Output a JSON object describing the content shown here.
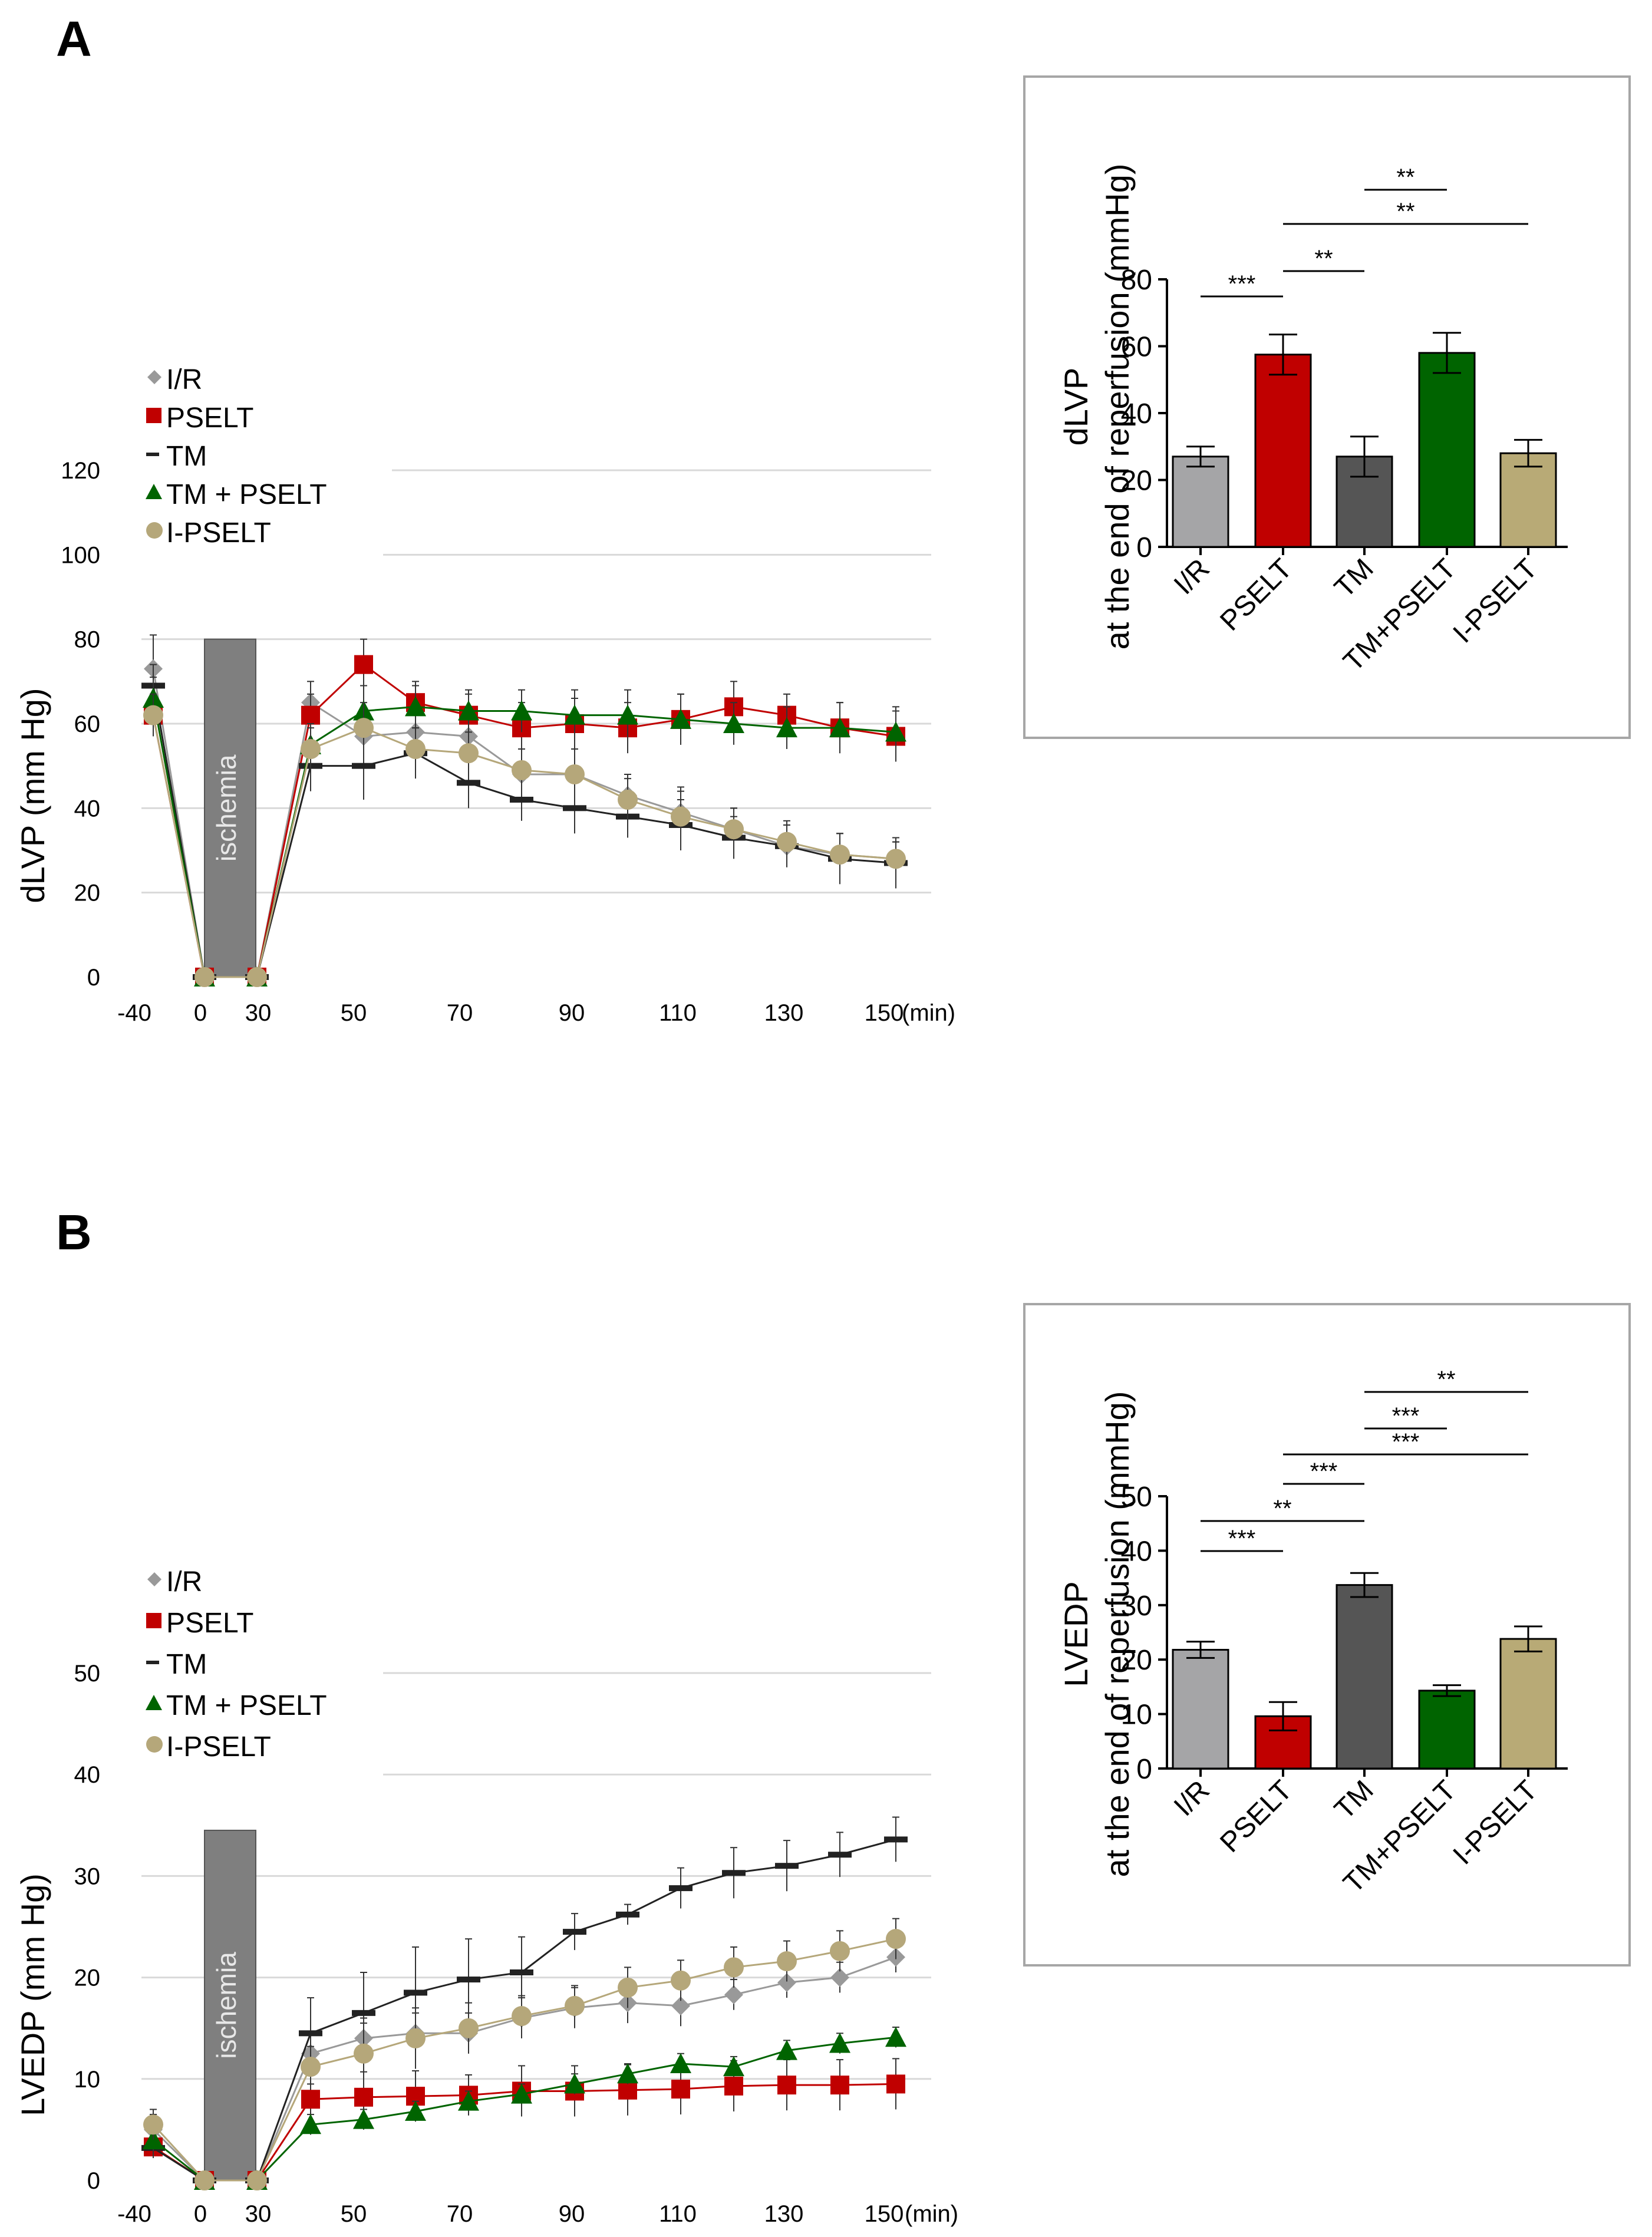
{
  "panels": [
    {
      "id": "A",
      "letter": "A",
      "line": {
        "ylabel": "dLVP (mm Hg)",
        "ylim": [
          0,
          120
        ],
        "yticks": [
          0,
          20,
          40,
          60,
          80,
          100,
          120
        ],
        "xtick_labels": [
          "-40",
          "0",
          "30",
          "50",
          "70",
          "90",
          "110",
          "130",
          "150"
        ],
        "x_unit": "(min)",
        "ischemia_label": "ischemia",
        "ischemia_top": 80,
        "legend": [
          "I/R",
          "PSELT",
          "TM",
          "TM +  PSELT",
          "I-PSELT"
        ]
      },
      "bar": {
        "ylabel_line1": "dLVP",
        "ylabel_line2": "at the end of reperfusion (mmHg)",
        "ylim": [
          0,
          80
        ],
        "yticks": [
          0,
          20,
          40,
          60,
          80
        ],
        "categories": [
          "I/R",
          "PSELT",
          "TM",
          "TM+PSELT",
          "I-PSELT"
        ],
        "significance": [
          {
            "from": 0,
            "to": 1,
            "label": "***"
          },
          {
            "from": 1,
            "to": 2,
            "label": "**"
          },
          {
            "from": 1,
            "to": 4,
            "label": "**"
          },
          {
            "from": 2,
            "to": 3,
            "label": "**"
          }
        ]
      }
    },
    {
      "id": "B",
      "letter": "B",
      "line": {
        "ylabel": "LVEDP (mm Hg)",
        "ylim": [
          0,
          50
        ],
        "yticks": [
          0,
          10,
          20,
          30,
          40,
          50
        ],
        "xtick_labels": [
          "-40",
          "0",
          "30",
          "50",
          "70",
          "90",
          "110",
          "130",
          "150"
        ],
        "x_unit": "(min)",
        "ischemia_label": "ischemia",
        "ischemia_top": 34.5,
        "legend": [
          "I/R",
          "PSELT",
          "TM",
          "TM +  PSELT",
          "I-PSELT"
        ]
      },
      "bar": {
        "ylabel_line1": "LVEDP",
        "ylabel_line2": "at the end of reperfusion (mmHg)",
        "ylim": [
          0,
          50
        ],
        "yticks": [
          0,
          10,
          20,
          30,
          40,
          50
        ],
        "categories": [
          "I/R",
          "PSELT",
          "TM",
          "TM+PSELT",
          "I-PSELT"
        ],
        "significance": [
          {
            "from": 0,
            "to": 1,
            "label": "***"
          },
          {
            "from": 0,
            "to": 2,
            "label": "**"
          },
          {
            "from": 1,
            "to": 2,
            "label": "***"
          },
          {
            "from": 1,
            "to": 4,
            "label": "***"
          },
          {
            "from": 2,
            "to": 3,
            "label": "***"
          },
          {
            "from": 2,
            "to": 4,
            "label": "**"
          }
        ]
      }
    }
  ],
  "chart_data": [
    {
      "type": "line",
      "panel": "A",
      "title": "",
      "xlabel": "(min)",
      "ylabel": "dLVP (mm Hg)",
      "ylim": [
        0,
        120
      ],
      "x": [
        -40,
        0,
        30,
        40,
        50,
        60,
        70,
        80,
        90,
        100,
        110,
        120,
        130,
        140,
        150
      ],
      "series": [
        {
          "name": "I/R",
          "color": "#999999",
          "marker": "diamond",
          "values": [
            73,
            0,
            0,
            65,
            57,
            58,
            57,
            48,
            48,
            43,
            39,
            35,
            31,
            29,
            28
          ],
          "errors": [
            8,
            0,
            0,
            5,
            6,
            5,
            5,
            6,
            6,
            5,
            6,
            5,
            5,
            5,
            4
          ]
        },
        {
          "name": "PSELT",
          "color": "#c00000",
          "marker": "square",
          "values": [
            62,
            0,
            0,
            62,
            74,
            65,
            62,
            59,
            60,
            59,
            61,
            64,
            62,
            59,
            57
          ],
          "errors": [
            4,
            0,
            0,
            5,
            6,
            5,
            5,
            6,
            6,
            6,
            6,
            6,
            5,
            6,
            6
          ]
        },
        {
          "name": "TM",
          "color": "#222222",
          "marker": "dash",
          "values": [
            69,
            0,
            0,
            50,
            50,
            53,
            46,
            42,
            40,
            38,
            36,
            33,
            31,
            28,
            27
          ],
          "errors": [
            5,
            0,
            0,
            6,
            8,
            6,
            6,
            5,
            6,
            5,
            6,
            5,
            5,
            6,
            6
          ]
        },
        {
          "name": "TM +  PSELT",
          "color": "#006400",
          "marker": "triangle",
          "values": [
            66,
            0,
            0,
            55,
            63,
            64,
            63,
            63,
            62,
            62,
            61,
            60,
            59,
            59,
            58
          ],
          "errors": [
            5,
            0,
            0,
            5,
            6,
            5,
            5,
            5,
            6,
            6,
            6,
            5,
            5,
            6,
            6
          ]
        },
        {
          "name": "I-PSELT",
          "color": "#b5a77a",
          "marker": "circle",
          "values": [
            62,
            0,
            0,
            54,
            59,
            54,
            53,
            49,
            48,
            42,
            38,
            35,
            32,
            29,
            28
          ],
          "errors": [
            5,
            0,
            0,
            5,
            6,
            5,
            5,
            5,
            6,
            5,
            6,
            5,
            5,
            5,
            4
          ]
        }
      ],
      "annotations": [
        "ischemia"
      ]
    },
    {
      "type": "bar",
      "panel": "A",
      "title": "",
      "xlabel": "",
      "ylabel": "dLVP at the end of reperfusion (mmHg)",
      "ylim": [
        0,
        80
      ],
      "categories": [
        "I/R",
        "PSELT",
        "TM",
        "TM+PSELT",
        "I-PSELT"
      ],
      "values": [
        27,
        57.5,
        27,
        58,
        28
      ],
      "errors": [
        3,
        6,
        6,
        6,
        4
      ],
      "colors": [
        "#a5a5a7",
        "#c00000",
        "#555555",
        "#006400",
        "#b8aa76"
      ]
    },
    {
      "type": "line",
      "panel": "B",
      "title": "",
      "xlabel": "(min)",
      "ylabel": "LVEDP (mm Hg)",
      "ylim": [
        0,
        50
      ],
      "x": [
        -40,
        0,
        30,
        40,
        50,
        60,
        70,
        80,
        90,
        100,
        110,
        120,
        130,
        140,
        150
      ],
      "series": [
        {
          "name": "I/R",
          "color": "#999999",
          "marker": "diamond",
          "values": [
            5,
            0,
            0,
            12.5,
            14,
            14.5,
            14.5,
            16,
            17,
            17.5,
            17.2,
            18.3,
            19.5,
            20,
            22
          ],
          "errors": [
            1.5,
            0,
            0,
            2,
            2,
            2,
            2,
            2,
            2,
            2,
            2,
            1.5,
            1.5,
            1.5,
            1.5
          ]
        },
        {
          "name": "PSELT",
          "color": "#c00000",
          "marker": "square",
          "values": [
            3.3,
            0,
            0,
            8,
            8.2,
            8.3,
            8.4,
            8.8,
            8.8,
            8.9,
            9,
            9.3,
            9.4,
            9.4,
            9.5
          ],
          "errors": [
            1,
            0,
            0,
            1.5,
            2.5,
            2.5,
            2,
            2.5,
            2.5,
            2.5,
            2.5,
            2.5,
            2.5,
            2.5,
            2.5
          ]
        },
        {
          "name": "TM",
          "color": "#222222",
          "marker": "dash",
          "values": [
            3.2,
            0,
            0,
            14.5,
            16.5,
            18.5,
            19.8,
            20.5,
            24.5,
            26.2,
            28.8,
            30.3,
            31,
            32.1,
            33.6
          ],
          "errors": [
            1,
            0,
            0,
            3.5,
            4,
            4.5,
            4,
            3.5,
            1.8,
            1,
            2,
            2.5,
            2.5,
            2.2,
            2.2
          ]
        },
        {
          "name": "TM +  PSELT",
          "color": "#006400",
          "marker": "triangle",
          "values": [
            4,
            0,
            0,
            5.5,
            6,
            6.8,
            7.8,
            8.5,
            9.5,
            10.5,
            11.5,
            11.2,
            12.8,
            13.5,
            14.1
          ],
          "errors": [
            1.5,
            0,
            0,
            1,
            1,
            1,
            1,
            1,
            1,
            1,
            1,
            1,
            1,
            1,
            1
          ]
        },
        {
          "name": "I-PSELT",
          "color": "#b5a77a",
          "marker": "circle",
          "values": [
            5.5,
            0,
            0,
            11.2,
            12.5,
            14,
            15,
            16.2,
            17.2,
            19,
            19.7,
            21,
            21.6,
            22.6,
            23.8
          ],
          "errors": [
            1.5,
            0,
            0,
            2,
            3,
            3,
            2.5,
            2,
            2,
            2,
            2,
            2,
            2,
            2,
            2
          ]
        }
      ],
      "annotations": [
        "ischemia"
      ]
    },
    {
      "type": "bar",
      "panel": "B",
      "title": "",
      "xlabel": "",
      "ylabel": "LVEDP at the end of reperfusion (mmHg)",
      "ylim": [
        0,
        50
      ],
      "categories": [
        "I/R",
        "PSELT",
        "TM",
        "TM+PSELT",
        "I-PSELT"
      ],
      "values": [
        21.8,
        9.6,
        33.7,
        14.3,
        23.8
      ],
      "errors": [
        1.5,
        2.6,
        2.2,
        1,
        2.3
      ],
      "colors": [
        "#a5a5a7",
        "#c00000",
        "#555555",
        "#006400",
        "#b8aa76"
      ]
    }
  ]
}
